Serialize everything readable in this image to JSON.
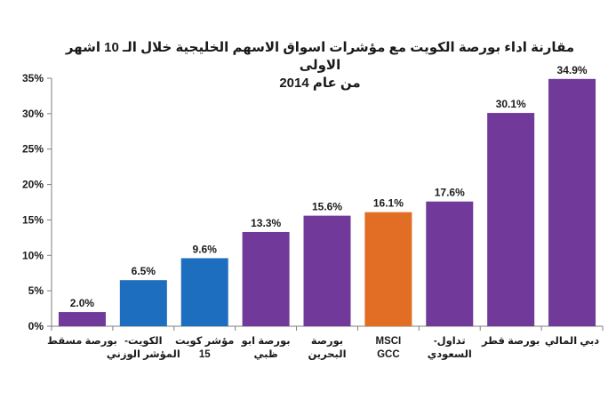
{
  "chart_data": {
    "type": "bar",
    "title_line1": "مقارنة اداء بورصة الكويت مع مؤشرات اسواق الاسهم الخليجية خلال الـ 10 اشهر الاولى",
    "title_line2": "من عام 2014",
    "xlabel": "",
    "ylabel": "",
    "ylim": [
      0,
      35
    ],
    "y_ticks": [
      "0%",
      "5%",
      "10%",
      "15%",
      "20%",
      "25%",
      "30%",
      "35%"
    ],
    "grid": false,
    "legend": "none",
    "categories": [
      [
        "بورصة مسقط"
      ],
      [
        "الكويت-",
        "المؤشر الوزني"
      ],
      [
        "مؤشر كويت",
        "15"
      ],
      [
        "بورصة ابو",
        "ظبي"
      ],
      [
        "بورصة",
        "البحرين"
      ],
      [
        "MSCI",
        "GCC"
      ],
      [
        "تداول-",
        "السعودي"
      ],
      [
        "بورصة قطر"
      ],
      [
        "دبي المالي"
      ]
    ],
    "values": [
      2.0,
      6.5,
      9.6,
      13.3,
      15.6,
      16.1,
      17.6,
      30.1,
      34.9
    ],
    "value_labels": [
      "2.0%",
      "6.5%",
      "9.6%",
      "13.3%",
      "15.6%",
      "16.1%",
      "17.6%",
      "30.1%",
      "34.9%"
    ],
    "colors": [
      "#71399a",
      "#1e6ebf",
      "#1e6ebf",
      "#71399a",
      "#71399a",
      "#e26e25",
      "#71399a",
      "#71399a",
      "#71399a"
    ]
  }
}
